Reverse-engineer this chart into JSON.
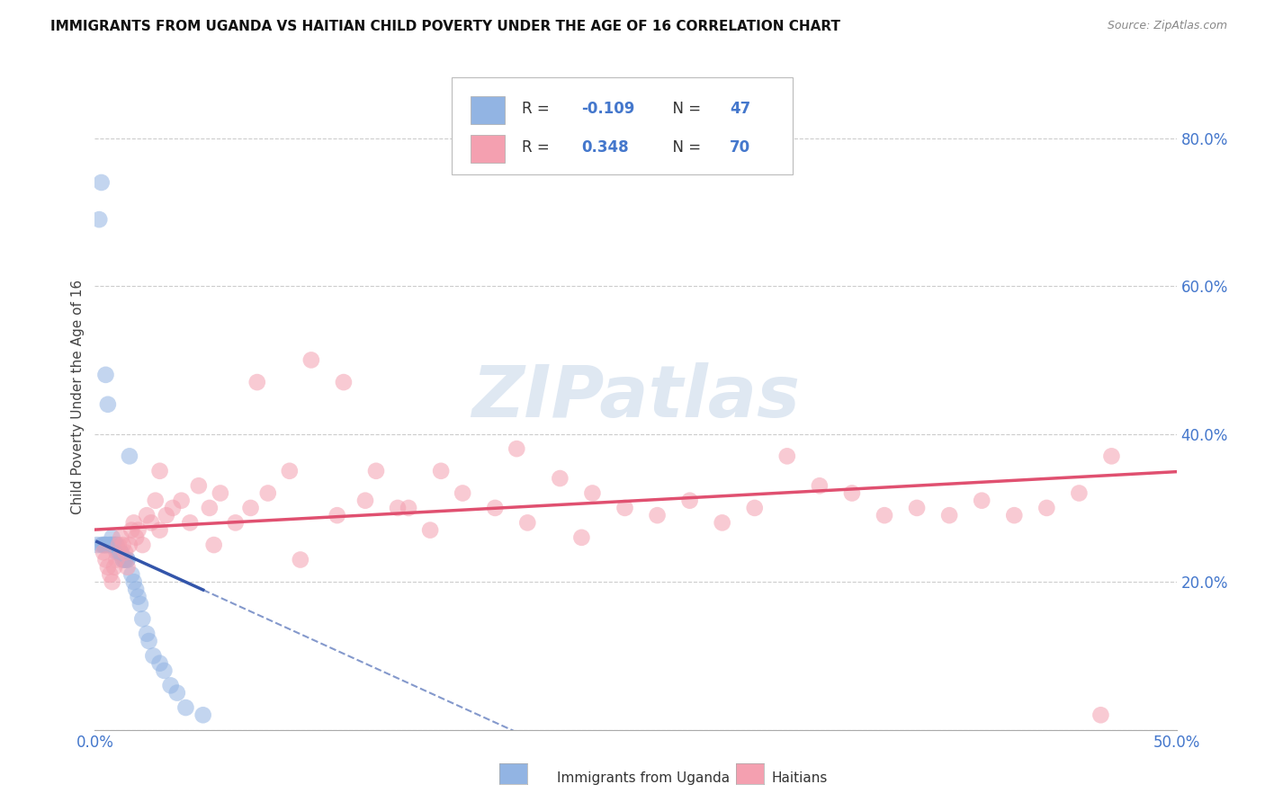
{
  "title": "IMMIGRANTS FROM UGANDA VS HAITIAN CHILD POVERTY UNDER THE AGE OF 16 CORRELATION CHART",
  "source": "Source: ZipAtlas.com",
  "ylabel": "Child Poverty Under the Age of 16",
  "xlim": [
    0.0,
    0.5
  ],
  "ylim": [
    0.0,
    0.9
  ],
  "uganda_color": "#92b4e3",
  "haiti_color": "#f4a0b0",
  "uganda_R": -0.109,
  "uganda_N": 47,
  "haiti_R": 0.348,
  "haiti_N": 70,
  "uganda_line_color": "#3355aa",
  "haiti_line_color": "#e05070",
  "watermark": "ZIPatlas",
  "background_color": "#ffffff",
  "grid_color": "#cccccc",
  "legend_label_uganda": "Immigrants from Uganda",
  "legend_label_haiti": "Haitians",
  "tick_color": "#4477cc",
  "uganda_x": [
    0.001,
    0.002,
    0.003,
    0.003,
    0.004,
    0.004,
    0.005,
    0.005,
    0.005,
    0.006,
    0.006,
    0.007,
    0.007,
    0.008,
    0.008,
    0.008,
    0.009,
    0.009,
    0.01,
    0.01,
    0.01,
    0.011,
    0.011,
    0.012,
    0.012,
    0.013,
    0.013,
    0.014,
    0.014,
    0.015,
    0.015,
    0.016,
    0.017,
    0.018,
    0.019,
    0.02,
    0.021,
    0.022,
    0.024,
    0.025,
    0.027,
    0.03,
    0.032,
    0.035,
    0.038,
    0.042,
    0.05
  ],
  "uganda_y": [
    0.25,
    0.69,
    0.74,
    0.25,
    0.25,
    0.25,
    0.48,
    0.25,
    0.25,
    0.44,
    0.25,
    0.25,
    0.25,
    0.25,
    0.25,
    0.26,
    0.25,
    0.25,
    0.24,
    0.25,
    0.25,
    0.24,
    0.24,
    0.24,
    0.24,
    0.23,
    0.23,
    0.23,
    0.23,
    0.23,
    0.23,
    0.37,
    0.21,
    0.2,
    0.19,
    0.18,
    0.17,
    0.15,
    0.13,
    0.12,
    0.1,
    0.09,
    0.08,
    0.06,
    0.05,
    0.03,
    0.02
  ],
  "haiti_x": [
    0.004,
    0.005,
    0.006,
    0.007,
    0.008,
    0.009,
    0.01,
    0.011,
    0.012,
    0.013,
    0.014,
    0.015,
    0.016,
    0.017,
    0.018,
    0.019,
    0.02,
    0.022,
    0.024,
    0.026,
    0.028,
    0.03,
    0.033,
    0.036,
    0.04,
    0.044,
    0.048,
    0.053,
    0.058,
    0.065,
    0.072,
    0.08,
    0.09,
    0.1,
    0.112,
    0.125,
    0.14,
    0.155,
    0.17,
    0.185,
    0.2,
    0.215,
    0.23,
    0.245,
    0.26,
    0.275,
    0.29,
    0.305,
    0.32,
    0.335,
    0.35,
    0.365,
    0.38,
    0.395,
    0.41,
    0.425,
    0.44,
    0.455,
    0.465,
    0.03,
    0.055,
    0.095,
    0.13,
    0.16,
    0.195,
    0.225,
    0.115,
    0.145,
    0.075,
    0.47
  ],
  "haiti_y": [
    0.24,
    0.23,
    0.22,
    0.21,
    0.2,
    0.22,
    0.23,
    0.25,
    0.26,
    0.25,
    0.24,
    0.22,
    0.25,
    0.27,
    0.28,
    0.26,
    0.27,
    0.25,
    0.29,
    0.28,
    0.31,
    0.27,
    0.29,
    0.3,
    0.31,
    0.28,
    0.33,
    0.3,
    0.32,
    0.28,
    0.3,
    0.32,
    0.35,
    0.5,
    0.29,
    0.31,
    0.3,
    0.27,
    0.32,
    0.3,
    0.28,
    0.34,
    0.32,
    0.3,
    0.29,
    0.31,
    0.28,
    0.3,
    0.37,
    0.33,
    0.32,
    0.29,
    0.3,
    0.29,
    0.31,
    0.29,
    0.3,
    0.32,
    0.02,
    0.35,
    0.25,
    0.23,
    0.35,
    0.35,
    0.38,
    0.26,
    0.47,
    0.3,
    0.47,
    0.37
  ]
}
